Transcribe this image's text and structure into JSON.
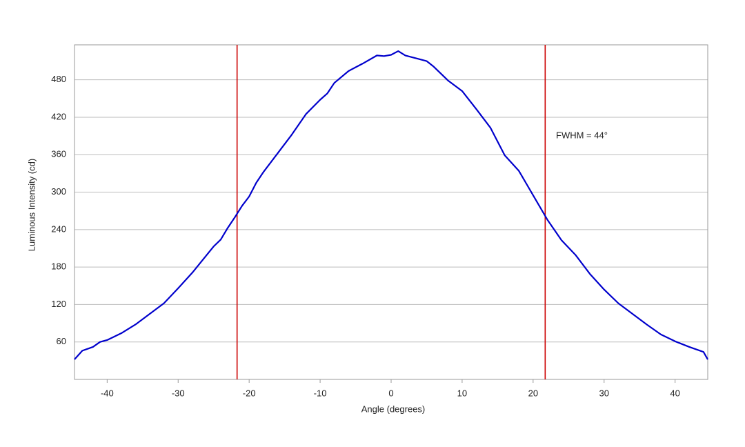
{
  "chart_data": {
    "type": "line",
    "xlabel": "Angle (degrees)",
    "ylabel": "Luminous Intensity (cd)",
    "annotation": "FWHM = 44°",
    "x": [
      -44.6,
      -43.5,
      -42,
      -41,
      -40,
      -38,
      -36,
      -34,
      -32,
      -30,
      -28,
      -26,
      -25,
      -24,
      -23,
      -22,
      -21,
      -20,
      -19,
      -18,
      -16,
      -14,
      -12,
      -10,
      -9,
      -8,
      -6,
      -4,
      -2,
      -1,
      0,
      1,
      2,
      4,
      5,
      6,
      8,
      10,
      12,
      14,
      16,
      18,
      20,
      22,
      24,
      26,
      28,
      30,
      32,
      34,
      36,
      38,
      40,
      42,
      44,
      44.6
    ],
    "series": [
      {
        "color": "#0000cc",
        "values": [
          32,
          46,
          52,
          60,
          63,
          74,
          88,
          105,
          122,
          146,
          171,
          199,
          213,
          224,
          243,
          260,
          278,
          293,
          315,
          332,
          362,
          392,
          425,
          448,
          458,
          475,
          494,
          506,
          519,
          518,
          520,
          526,
          519,
          513,
          510,
          501,
          479,
          462,
          433,
          403,
          359,
          334,
          295,
          256,
          223,
          199,
          169,
          144,
          122,
          105,
          88,
          72,
          61,
          52,
          44,
          32
        ]
      }
    ],
    "vlines": [
      {
        "x": -21.7,
        "color": "#cc0000"
      },
      {
        "x": 21.7,
        "color": "#cc0000"
      }
    ],
    "xlim": [
      -44.6,
      44.6
    ],
    "ylim": [
      0,
      536
    ],
    "xticks": [
      -40,
      -30,
      -20,
      -10,
      0,
      10,
      20,
      30,
      40
    ],
    "yticks": [
      60,
      120,
      180,
      240,
      300,
      360,
      420,
      480
    ],
    "grid": true
  }
}
